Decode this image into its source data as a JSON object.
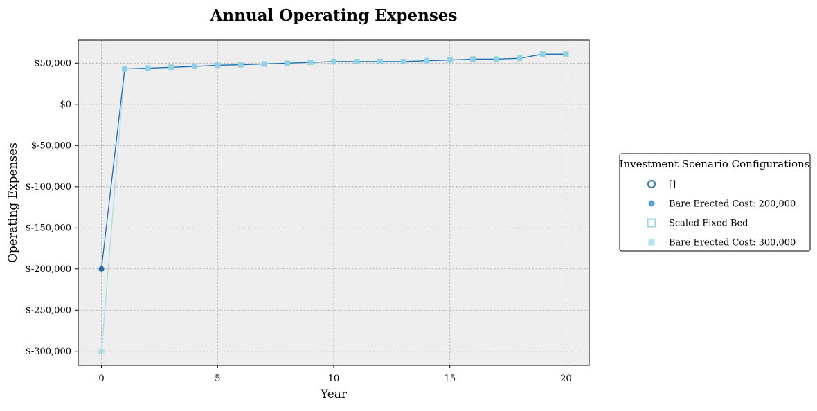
{
  "chart_data": {
    "type": "line",
    "title": "Annual Operating Expenses",
    "xlabel": "Year",
    "ylabel": "Operating Expenses",
    "xlim": [
      -1,
      21
    ],
    "ylim": [
      -317000,
      78000
    ],
    "xticks": [
      0,
      5,
      10,
      15,
      20
    ],
    "yticks": [
      50000,
      0,
      -50000,
      -100000,
      -150000,
      -200000,
      -250000,
      -300000
    ],
    "ytick_labels": [
      "$50,000",
      "$0",
      "$-50,000",
      "$-100,000",
      "$-150,000",
      "$-200,000",
      "$-250,000",
      "$-300,000"
    ],
    "grid": true,
    "legend_placement": "right",
    "legend": {
      "title": "Investment Scenario Configurations",
      "entries": [
        {
          "label": "[]",
          "marker": "circle-open",
          "color": "#2e7bb0"
        },
        {
          "label": "Bare Erected Cost: 200,000",
          "marker": "circle",
          "color": "#5b9fcc"
        },
        {
          "label": "Scaled Fixed Bed",
          "marker": "square-open",
          "color": "#9fd6e6"
        },
        {
          "label": "Bare Erected Cost: 300,000",
          "marker": "square",
          "color": "#b7e2ee"
        }
      ]
    },
    "x": [
      0,
      1,
      2,
      3,
      4,
      5,
      6,
      7,
      8,
      9,
      10,
      11,
      12,
      13,
      14,
      15,
      16,
      17,
      18,
      19,
      20
    ],
    "series": [
      {
        "color": "#1f6fb0",
        "marker": "circle",
        "values": [
          -200000,
          43000,
          44000,
          45000,
          46000,
          47500,
          48000,
          49000,
          50000,
          51000,
          52000,
          52000,
          52000,
          52000,
          53000,
          54000,
          55000,
          55000,
          56000,
          61000,
          61000
        ]
      },
      {
        "color": "#a8dcea",
        "marker": "square",
        "values": [
          -300000,
          43000,
          44000,
          45000,
          46000,
          47500,
          48000,
          49000,
          50000,
          51000,
          52000,
          52000,
          52000,
          52000,
          53000,
          54000,
          55000,
          55000,
          56000,
          61000,
          61000
        ]
      }
    ],
    "overlay_marker_color": "#8fd0e2"
  }
}
